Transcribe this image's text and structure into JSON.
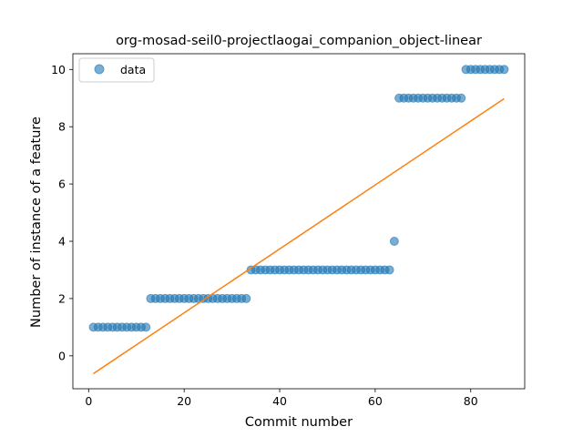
{
  "chart_data": {
    "type": "scatter",
    "title": "org-mosad-seil0-projectlaogai_companion_object-linear",
    "xlabel": "Commit number",
    "ylabel": "Number of instance of a feature",
    "xlim": [
      -3.3,
      91.3
    ],
    "ylim": [
      -1.15,
      10.55
    ],
    "x_ticks": [
      0,
      20,
      40,
      60,
      80
    ],
    "y_ticks": [
      0,
      2,
      4,
      6,
      8,
      10
    ],
    "grid": false,
    "legend": {
      "placement": "top-left",
      "entries": [
        "data"
      ]
    },
    "series": [
      {
        "name": "data",
        "kind": "scatter",
        "color": "#1f77b4",
        "alpha": 0.6,
        "x": [
          1,
          2,
          3,
          4,
          5,
          6,
          7,
          8,
          9,
          10,
          11,
          12,
          13,
          14,
          15,
          16,
          17,
          18,
          19,
          20,
          21,
          22,
          23,
          24,
          25,
          26,
          27,
          28,
          29,
          30,
          31,
          32,
          33,
          34,
          35,
          36,
          37,
          38,
          39,
          40,
          41,
          42,
          43,
          44,
          45,
          46,
          47,
          48,
          49,
          50,
          51,
          52,
          53,
          54,
          55,
          56,
          57,
          58,
          59,
          60,
          61,
          62,
          63,
          64,
          65,
          66,
          67,
          68,
          69,
          70,
          71,
          72,
          73,
          74,
          75,
          76,
          77,
          78,
          79,
          80,
          81,
          82,
          83,
          84,
          85,
          86,
          87
        ],
        "y": [
          1,
          1,
          1,
          1,
          1,
          1,
          1,
          1,
          1,
          1,
          1,
          1,
          2,
          2,
          2,
          2,
          2,
          2,
          2,
          2,
          2,
          2,
          2,
          2,
          2,
          2,
          2,
          2,
          2,
          2,
          2,
          2,
          2,
          3,
          3,
          3,
          3,
          3,
          3,
          3,
          3,
          3,
          3,
          3,
          3,
          3,
          3,
          3,
          3,
          3,
          3,
          3,
          3,
          3,
          3,
          3,
          3,
          3,
          3,
          3,
          3,
          3,
          3,
          4,
          9,
          9,
          9,
          9,
          9,
          9,
          9,
          9,
          9,
          9,
          9,
          9,
          9,
          9,
          10,
          10,
          10,
          10,
          10,
          10,
          10,
          10,
          10
        ]
      },
      {
        "kind": "line",
        "color": "#ff7f0e",
        "x": [
          1,
          87
        ],
        "y": [
          -0.62,
          8.98
        ]
      }
    ]
  }
}
